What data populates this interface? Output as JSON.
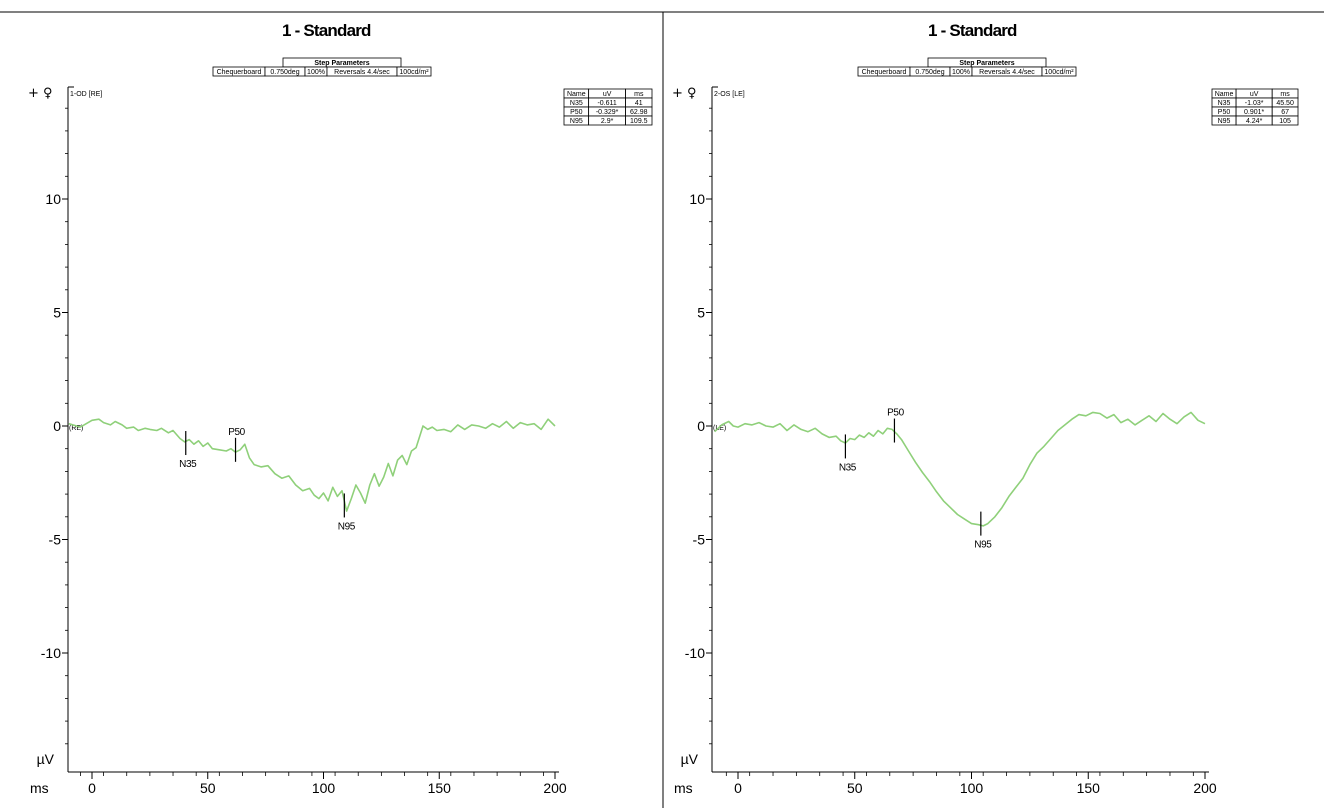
{
  "colors": {
    "trace": "#8fd07a",
    "axis": "#000000"
  },
  "chart_data": [
    {
      "type": "line",
      "title": "1 - Standard",
      "channel_label": "1-OD [RE]",
      "trace_label": "(RE)",
      "y_unit": "µV",
      "x_unit": "ms",
      "y_prefix": "+ ♀",
      "xlim": [
        -10,
        200
      ],
      "ylim": [
        -14.5,
        15
      ],
      "x_ticks": [
        0,
        50,
        100,
        150,
        200
      ],
      "y_ticks": [
        10,
        5,
        0,
        -5,
        -10
      ],
      "step_parameters": {
        "header": "Step Parameters",
        "cells": [
          "Chequerboard",
          "0.750deg",
          "100%",
          "Reversals 4.4/sec",
          "100cd/m²"
        ]
      },
      "results_table": {
        "columns": [
          "Name",
          "uV",
          "ms"
        ],
        "rows": [
          [
            "N35",
            "-0.611",
            "41"
          ],
          [
            "P50",
            "-0.329*",
            "62.98"
          ],
          [
            "N95",
            "2.9*",
            "109.5"
          ]
        ]
      },
      "markers": [
        {
          "name": "N35",
          "x": 40.5,
          "y": -0.75,
          "label_pos": "below"
        },
        {
          "name": "P50",
          "x": 62,
          "y": -1.05,
          "label_pos": "above"
        },
        {
          "name": "N95",
          "x": 109,
          "y": -3.5,
          "label_pos": "below"
        }
      ],
      "series": [
        {
          "x": [
            -10,
            -5,
            0,
            3,
            5,
            8,
            10,
            13,
            15,
            18,
            20,
            23,
            25,
            28,
            30,
            33,
            35,
            38,
            40,
            42,
            44,
            46,
            48,
            50,
            52,
            55,
            58,
            60,
            62,
            64,
            66,
            68,
            70,
            73,
            76,
            79,
            82,
            85,
            88,
            91,
            94,
            96,
            98,
            100,
            102,
            104,
            106,
            108,
            110,
            112,
            114,
            116,
            118,
            120,
            122,
            124,
            126,
            128,
            130,
            132,
            134,
            136,
            138,
            140,
            143,
            145,
            147,
            149,
            152,
            155,
            158,
            161,
            164,
            167,
            170,
            173,
            176,
            179,
            182,
            185,
            188,
            191,
            194,
            197,
            200
          ],
          "y": [
            0.1,
            -0.05,
            0.25,
            0.3,
            0.15,
            0.05,
            0.2,
            0.05,
            -0.1,
            -0.05,
            -0.2,
            -0.1,
            -0.15,
            -0.2,
            -0.1,
            -0.3,
            -0.2,
            -0.55,
            -0.7,
            -0.6,
            -0.8,
            -0.65,
            -0.9,
            -0.75,
            -1,
            -1.05,
            -1.1,
            -1.0,
            -1.15,
            -1.05,
            -0.8,
            -1.4,
            -1.7,
            -1.8,
            -1.75,
            -2.1,
            -2.3,
            -2.2,
            -2.6,
            -2.85,
            -2.75,
            -3.05,
            -3.2,
            -2.95,
            -3.3,
            -2.7,
            -3.1,
            -2.85,
            -3.75,
            -3.2,
            -2.6,
            -2.95,
            -3.4,
            -2.6,
            -2.1,
            -2.65,
            -2.25,
            -1.65,
            -2.2,
            -1.5,
            -1.3,
            -1.7,
            -1.1,
            -0.95,
            0.0,
            -0.15,
            -0.05,
            -0.2,
            -0.15,
            -0.25,
            0.05,
            -0.15,
            0.05,
            0.0,
            -0.1,
            0.1,
            -0.05,
            0.2,
            -0.1,
            0.15,
            0.05,
            0.1,
            -0.15,
            0.3,
            0.0
          ]
        }
      ]
    },
    {
      "type": "line",
      "title": "1 - Standard",
      "channel_label": "2-OS [LE]",
      "trace_label": "(LE)",
      "y_unit": "µV",
      "x_unit": "ms",
      "y_prefix": "+ ♀",
      "xlim": [
        -10,
        200
      ],
      "ylim": [
        -14.5,
        15
      ],
      "x_ticks": [
        0,
        50,
        100,
        150,
        200
      ],
      "y_ticks": [
        10,
        5,
        0,
        -5,
        -10
      ],
      "step_parameters": {
        "header": "Step Parameters",
        "cells": [
          "Chequerboard",
          "0.750deg",
          "100%",
          "Reversals 4.4/sec",
          "100cd/m²"
        ]
      },
      "results_table": {
        "columns": [
          "Name",
          "uV",
          "ms"
        ],
        "rows": [
          [
            "N35",
            "-1.03*",
            "45.50"
          ],
          [
            "P50",
            "0.901*",
            "67"
          ],
          [
            "N95",
            "4.24*",
            "105"
          ]
        ]
      },
      "markers": [
        {
          "name": "N35",
          "x": 46,
          "y": -0.9,
          "label_pos": "below"
        },
        {
          "name": "P50",
          "x": 67,
          "y": -0.2,
          "label_pos": "above"
        },
        {
          "name": "N95",
          "x": 104,
          "y": -4.3,
          "label_pos": "below"
        }
      ],
      "series": [
        {
          "x": [
            -10,
            -7,
            -4,
            -2,
            0,
            3,
            6,
            9,
            12,
            15,
            18,
            21,
            24,
            27,
            30,
            33,
            36,
            39,
            42,
            44,
            46,
            48,
            50,
            52,
            54,
            56,
            58,
            60,
            62,
            64,
            66,
            68,
            70,
            73,
            76,
            79,
            82,
            85,
            88,
            91,
            94,
            97,
            100,
            103,
            105,
            107,
            110,
            113,
            116,
            119,
            122,
            125,
            128,
            131,
            134,
            137,
            140,
            143,
            146,
            149,
            152,
            155,
            158,
            161,
            164,
            167,
            170,
            173,
            176,
            179,
            182,
            185,
            188,
            191,
            194,
            197,
            200
          ],
          "y": [
            -0.25,
            0.05,
            0.2,
            0.0,
            -0.05,
            0.1,
            0.05,
            0.15,
            0.0,
            -0.05,
            0.1,
            -0.2,
            0.05,
            -0.15,
            -0.25,
            -0.1,
            -0.35,
            -0.5,
            -0.45,
            -0.65,
            -0.75,
            -0.55,
            -0.6,
            -0.4,
            -0.5,
            -0.3,
            -0.45,
            -0.2,
            -0.35,
            -0.1,
            -0.15,
            -0.35,
            -0.6,
            -1.1,
            -1.6,
            -2.05,
            -2.45,
            -2.9,
            -3.3,
            -3.6,
            -3.9,
            -4.1,
            -4.3,
            -4.35,
            -4.4,
            -4.3,
            -4.0,
            -3.6,
            -3.1,
            -2.7,
            -2.3,
            -1.7,
            -1.2,
            -0.9,
            -0.55,
            -0.2,
            0.05,
            0.3,
            0.5,
            0.45,
            0.6,
            0.55,
            0.35,
            0.5,
            0.15,
            0.3,
            0.05,
            0.25,
            0.45,
            0.2,
            0.55,
            0.3,
            0.1,
            0.4,
            0.6,
            0.25,
            0.1
          ]
        }
      ]
    }
  ]
}
